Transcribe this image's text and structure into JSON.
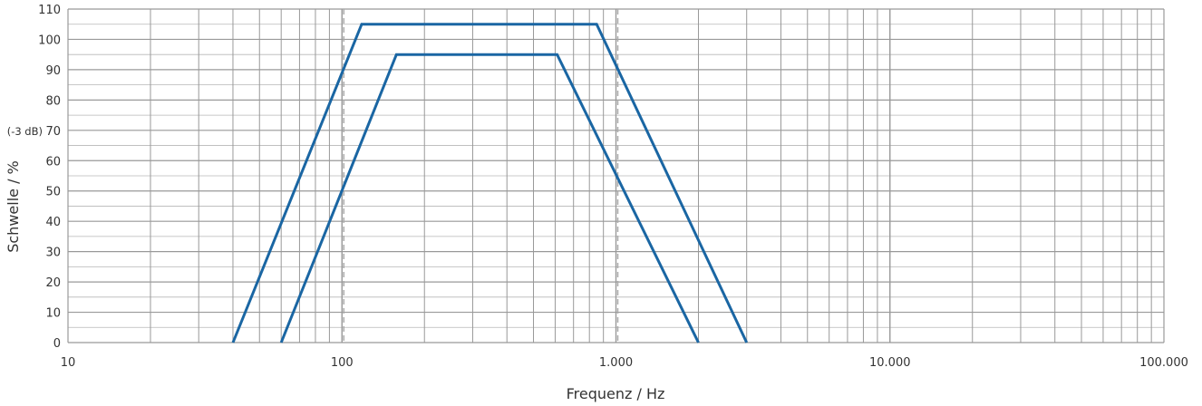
{
  "chart_data": {
    "type": "line",
    "title": "",
    "xlabel": "Frequenz / Hz",
    "ylabel": "Schwelle / %",
    "x_scale": "log",
    "xlim": [
      10,
      100000
    ],
    "ylim": [
      0,
      110
    ],
    "x_ticks": [
      {
        "value": 10,
        "label": "10"
      },
      {
        "value": 100,
        "label": "100"
      },
      {
        "value": 1000,
        "label": "1.000"
      },
      {
        "value": 10000,
        "label": "10.000"
      },
      {
        "value": 100000,
        "label": "100.000"
      }
    ],
    "y_ticks": [
      0,
      10,
      20,
      30,
      40,
      50,
      60,
      70,
      80,
      90,
      100,
      110
    ],
    "y_annotation": {
      "value": 70,
      "label": "(-3 dB)"
    },
    "reference_lines_x": [
      100,
      1000
    ],
    "grid": true,
    "colors": {
      "series": "#1a66a3",
      "grid": "#999999",
      "dashed": "#aaaaaa",
      "text": "#333333"
    },
    "series": [
      {
        "x": [
          40,
          118,
          850,
          3000
        ],
        "y": [
          0,
          105,
          105,
          0
        ]
      },
      {
        "x": [
          60,
          158,
          610,
          2000
        ],
        "y": [
          0,
          95,
          95,
          0
        ]
      }
    ]
  }
}
